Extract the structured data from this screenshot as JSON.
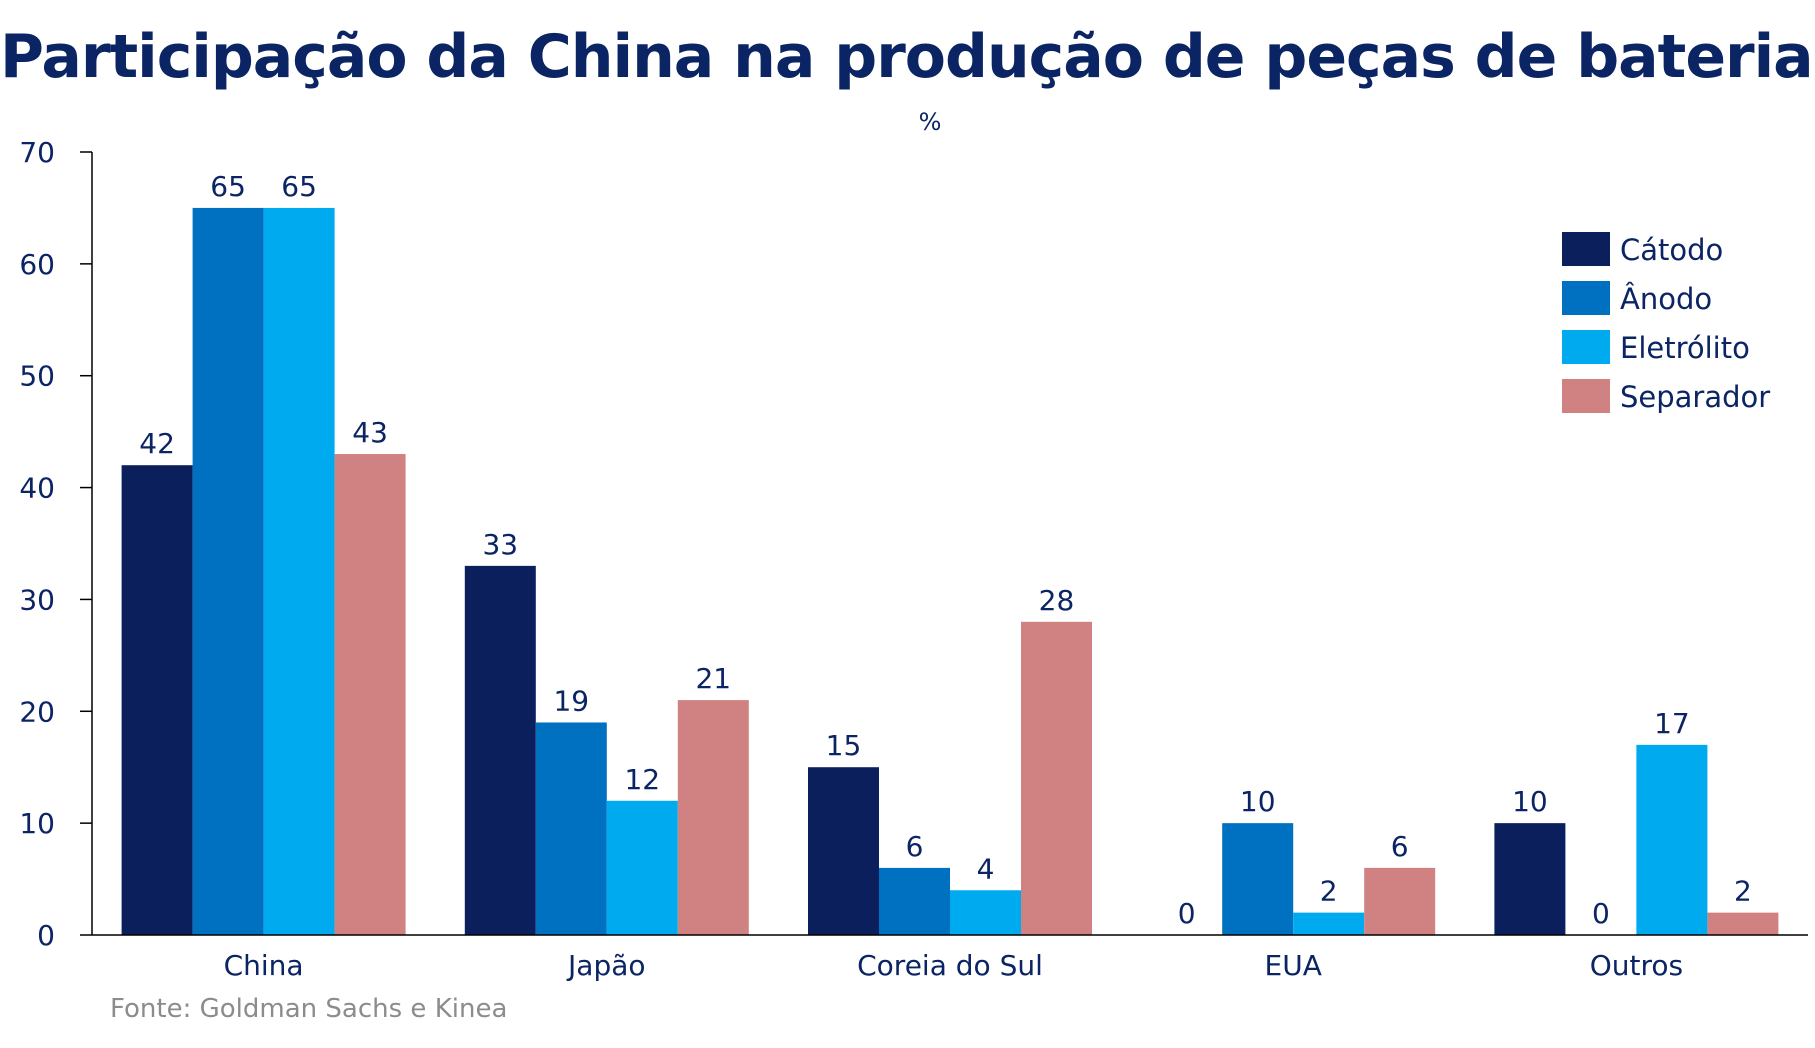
{
  "chart_data": {
    "type": "bar",
    "title": "Participação da China na produção de peças de baterias",
    "subtitle": "%",
    "categories": [
      "China",
      "Japão",
      "Coreia do Sul",
      "EUA",
      "Outros"
    ],
    "series": [
      {
        "name": "Cátodo",
        "color": "#0a1f5c",
        "values": [
          42,
          33,
          15,
          0,
          10
        ]
      },
      {
        "name": "Ânodo",
        "color": "#0070c0",
        "values": [
          65,
          19,
          6,
          10,
          0
        ]
      },
      {
        "name": "Eletrólito",
        "color": "#00aaee",
        "values": [
          65,
          12,
          4,
          2,
          17
        ]
      },
      {
        "name": "Separador",
        "color": "#d08282",
        "values": [
          43,
          21,
          28,
          6,
          2
        ]
      }
    ],
    "ylim": [
      0,
      70
    ],
    "yticks": [
      0,
      10,
      20,
      30,
      40,
      50,
      60,
      70
    ],
    "xlabel": "",
    "ylabel": "",
    "grid": false,
    "legend_position": "top-right",
    "source": "Fonte: Goldman Sachs e Kinea"
  }
}
